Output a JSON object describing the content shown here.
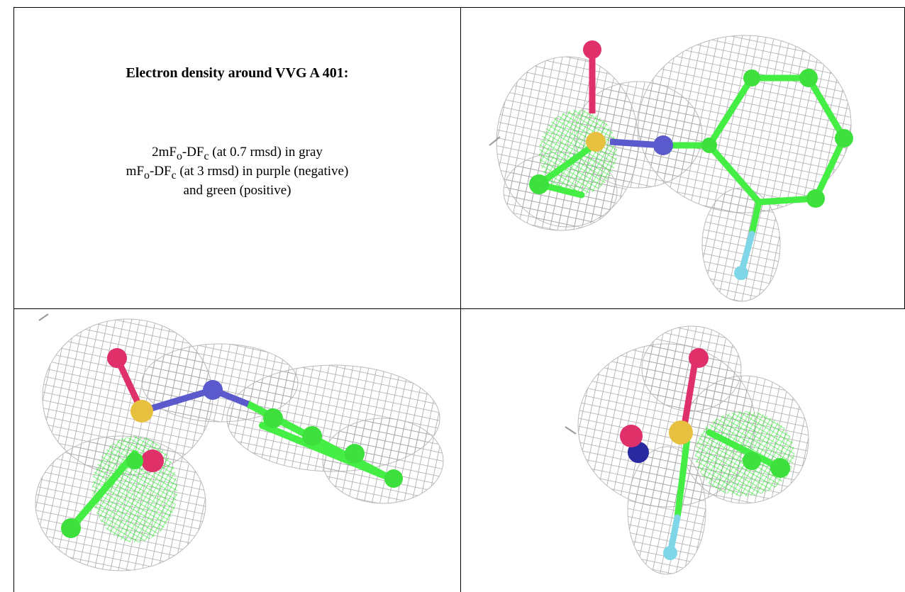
{
  "caption": {
    "title": "Electron density around VVG A 401:",
    "line1": [
      "2mF",
      "o",
      "-DF",
      "c",
      " (at 0.7 rmsd) in gray"
    ],
    "line2": [
      "mF",
      "o",
      "-DF",
      "c",
      " (at 3 rmsd) in purple (negative)"
    ],
    "line3": "and green (positive)"
  }
}
